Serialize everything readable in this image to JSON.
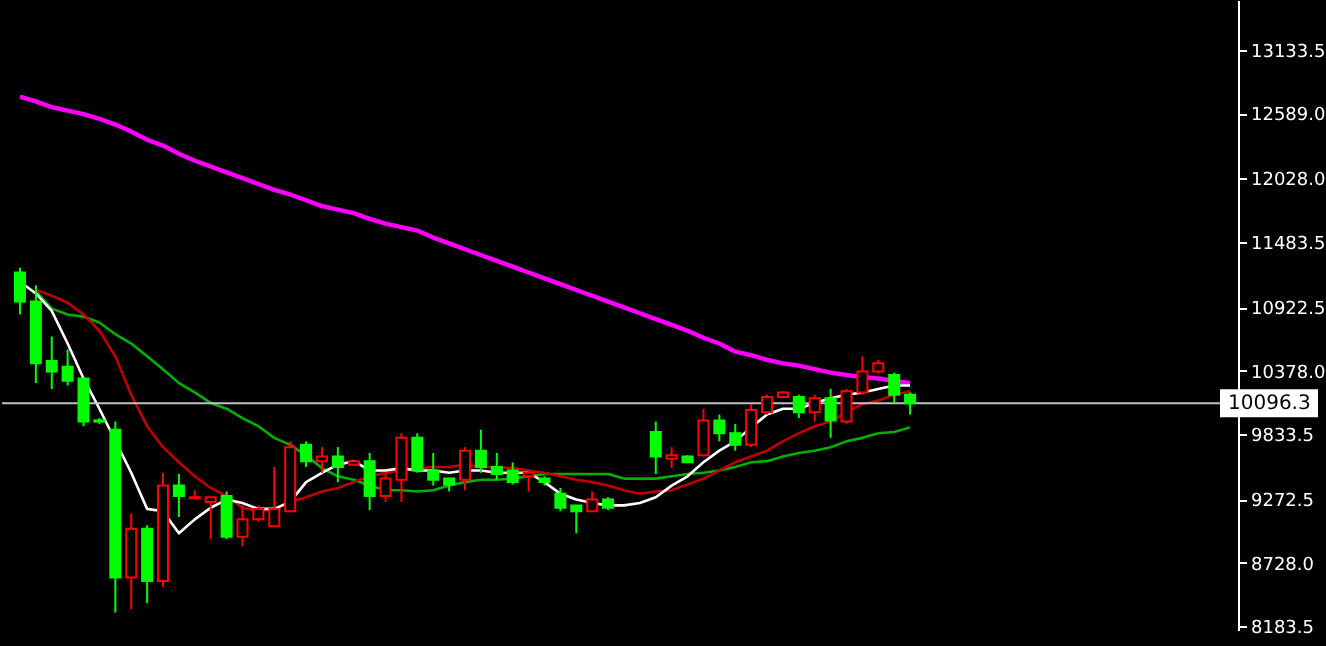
{
  "chart_data": {
    "type": "candlestick",
    "categories": [
      null,
      null,
      null,
      null,
      null,
      null,
      null,
      null,
      null,
      null,
      null,
      null,
      null,
      null,
      null,
      null,
      null,
      null,
      null,
      null,
      null,
      null,
      null,
      null,
      null,
      null,
      null,
      null,
      null,
      null,
      null,
      null,
      null,
      null,
      null,
      null,
      null,
      null,
      null,
      null,
      null,
      null,
      null,
      null,
      null,
      null,
      null,
      null,
      null,
      null,
      null,
      null,
      null,
      null,
      null,
      null,
      null
    ],
    "ohlc": [
      [
        11220,
        11260,
        10860,
        10970
      ],
      [
        10970,
        11110,
        10270,
        10440
      ],
      [
        10460,
        10670,
        10220,
        10370
      ],
      [
        10410,
        10560,
        10250,
        10290
      ],
      [
        10310,
        10310,
        9900,
        9940
      ],
      [
        9950,
        9970,
        9920,
        9940
      ],
      [
        9870,
        9940,
        8300,
        8600
      ],
      [
        8600,
        9150,
        8330,
        9020
      ],
      [
        9020,
        9050,
        8380,
        8570
      ],
      [
        8570,
        9500,
        8520,
        9390
      ],
      [
        9390,
        9490,
        9120,
        9300
      ],
      [
        9280,
        9350,
        9280,
        9290
      ],
      [
        9250,
        9290,
        8930,
        9290
      ],
      [
        9300,
        9340,
        8930,
        8950
      ],
      [
        8950,
        9220,
        8870,
        9100
      ],
      [
        9100,
        9220,
        9080,
        9190
      ],
      [
        9040,
        9550,
        9040,
        9190
      ],
      [
        9170,
        9770,
        9170,
        9720
      ],
      [
        9740,
        9770,
        9550,
        9600
      ],
      [
        9600,
        9720,
        9500,
        9640
      ],
      [
        9640,
        9720,
        9420,
        9550
      ],
      [
        9570,
        9600,
        9570,
        9600
      ],
      [
        9600,
        9670,
        9180,
        9300
      ],
      [
        9300,
        9500,
        9250,
        9450
      ],
      [
        9440,
        9840,
        9250,
        9800
      ],
      [
        9800,
        9840,
        9500,
        9520
      ],
      [
        9520,
        9670,
        9390,
        9440
      ],
      [
        9450,
        9450,
        9340,
        9400
      ],
      [
        9440,
        9720,
        9350,
        9690
      ],
      [
        9690,
        9870,
        9500,
        9550
      ],
      [
        9550,
        9670,
        9440,
        9490
      ],
      [
        9520,
        9590,
        9400,
        9420
      ],
      [
        9470,
        9520,
        9340,
        9500
      ],
      [
        9450,
        9470,
        9390,
        9420
      ],
      [
        9320,
        9370,
        9170,
        9200
      ],
      [
        9220,
        9220,
        8980,
        9170
      ],
      [
        9170,
        9340,
        9170,
        9270
      ],
      [
        9270,
        9290,
        9180,
        9200
      ],
      null,
      null,
      [
        9850,
        9940,
        9490,
        9640
      ],
      [
        9620,
        9720,
        9540,
        9650
      ],
      [
        9640,
        9650,
        9590,
        9590
      ],
      [
        9650,
        10050,
        9640,
        9950
      ],
      [
        9950,
        10000,
        9770,
        9840
      ],
      [
        9840,
        9920,
        9690,
        9740
      ],
      [
        9740,
        10090,
        9720,
        10040
      ],
      [
        10020,
        10170,
        10000,
        10150
      ],
      [
        10150,
        10200,
        10140,
        10190
      ],
      [
        10150,
        10170,
        9970,
        10020
      ],
      [
        10020,
        10170,
        9940,
        10140
      ],
      [
        10140,
        10220,
        9800,
        9950
      ],
      [
        9940,
        10220,
        9920,
        10200
      ],
      [
        10190,
        10500,
        10170,
        10370
      ],
      [
        10370,
        10470,
        10350,
        10440
      ],
      [
        10340,
        10360,
        10100,
        10170
      ],
      [
        10170,
        10190,
        10000,
        10096.3
      ]
    ],
    "colors": [
      "#00ff00",
      "#00ff00",
      "#00ff00",
      "#00ff00",
      "#00ff00",
      "#00ff00",
      "#00ff00",
      "#ff0000",
      "#00ff00",
      "#ff0000",
      "#00ff00",
      "#ff0000",
      "#ff0000",
      "#00ff00",
      "#ff0000",
      "#ff0000",
      "#ff0000",
      "#ff0000",
      "#00ff00",
      "#ff0000",
      "#00ff00",
      "#ff0000",
      "#00ff00",
      "#ff0000",
      "#ff0000",
      "#00ff00",
      "#00ff00",
      "#00ff00",
      "#ff0000",
      "#00ff00",
      "#00ff00",
      "#00ff00",
      "#ff0000",
      "#00ff00",
      "#00ff00",
      "#00ff00",
      "#ff0000",
      "#00ff00",
      null,
      null,
      "#00ff00",
      "#ff0000",
      "#00ff00",
      "#ff0000",
      "#00ff00",
      "#00ff00",
      "#ff0000",
      "#ff0000",
      "#ff0000",
      "#00ff00",
      "#ff0000",
      "#00ff00",
      "#ff0000",
      "#ff0000",
      "#ff0000",
      "#00ff00",
      "#00ff00"
    ],
    "series": [
      {
        "type": "line",
        "color": "#ff00ff",
        "values": [
          12730,
          12690,
          12640,
          12610,
          12580,
          12540,
          12490,
          12430,
          12360,
          12310,
          12240,
          12180,
          12130,
          12080,
          12030,
          11980,
          11930,
          11890,
          11840,
          11790,
          11760,
          11730,
          11680,
          11640,
          11610,
          11580,
          11520,
          11470,
          11420,
          11370,
          11320,
          11270,
          11220,
          11170,
          11120,
          11070,
          11020,
          10970,
          10920,
          10870,
          10820,
          10770,
          10720,
          10660,
          10610,
          10540,
          10510,
          10470,
          10440,
          10420,
          10390,
          10360,
          10340,
          10320,
          10310,
          10290,
          10270
        ]
      },
      {
        "type": "line",
        "color": "#00b000",
        "values": [
          null,
          11060,
          10910,
          10860,
          10840,
          10790,
          10690,
          10610,
          10500,
          10390,
          10270,
          10190,
          10100,
          10050,
          9970,
          9900,
          9800,
          9740,
          9650,
          9540,
          9470,
          9440,
          9390,
          9350,
          9350,
          9340,
          9350,
          9390,
          9420,
          9440,
          9440,
          9450,
          9470,
          9490,
          9490,
          9490,
          9490,
          9490,
          9450,
          9450,
          9450,
          9470,
          9490,
          9500,
          9520,
          9550,
          9590,
          9600,
          9640,
          9670,
          9690,
          9720,
          9770,
          9800,
          9840,
          9850,
          9890
        ]
      },
      {
        "type": "line",
        "color": "#c00000",
        "values": [
          null,
          11070,
          11020,
          10960,
          10860,
          10720,
          10500,
          10170,
          9900,
          9720,
          9590,
          9470,
          9370,
          9300,
          9200,
          9170,
          9190,
          9250,
          9290,
          9340,
          9370,
          9420,
          9470,
          9500,
          9520,
          9540,
          9550,
          9550,
          9570,
          9550,
          9550,
          9540,
          9520,
          9500,
          9470,
          9440,
          9420,
          9390,
          9350,
          9320,
          9340,
          9350,
          9400,
          9450,
          9520,
          9590,
          9640,
          9690,
          9770,
          9840,
          9900,
          9940,
          10020,
          10090,
          10120,
          10170,
          10200
        ]
      },
      {
        "type": "line",
        "color": "#ffffff",
        "values": [
          11140,
          11040,
          10890,
          10610,
          10310,
          10050,
          null,
          9500,
          9190,
          9170,
          8980,
          9100,
          9200,
          9270,
          9240,
          9190,
          9190,
          9250,
          9420,
          9500,
          9570,
          9600,
          9520,
          9520,
          9540,
          9520,
          9520,
          9500,
          9520,
          9520,
          9500,
          9500,
          9500,
          9420,
          9320,
          9270,
          9240,
          9220,
          9220,
          9240,
          9290,
          9390,
          9470,
          9590,
          9690,
          9770,
          9890,
          10000,
          10050,
          10050,
          10100,
          10140,
          10170,
          10190,
          10220,
          10250,
          10250
        ]
      }
    ],
    "ylim": [
      8150,
      13560
    ],
    "yticks": [
      8183.5,
      {
        "value": 8728,
        "label": "8728.0"
      },
      9272.5,
      9833.5,
      {
        "value": 10378,
        "label": "10378.0"
      },
      10922.5,
      11483.5,
      {
        "value": 12028,
        "label": "12028.0"
      },
      {
        "value": 12589,
        "label": "12589.0"
      },
      13133.5
    ],
    "ref_lines": [
      {
        "axis": "y",
        "value": 10096.3,
        "label": "10096.3",
        "color": "#c0c0c0"
      }
    ],
    "tick_labels": "y",
    "grid": false
  }
}
